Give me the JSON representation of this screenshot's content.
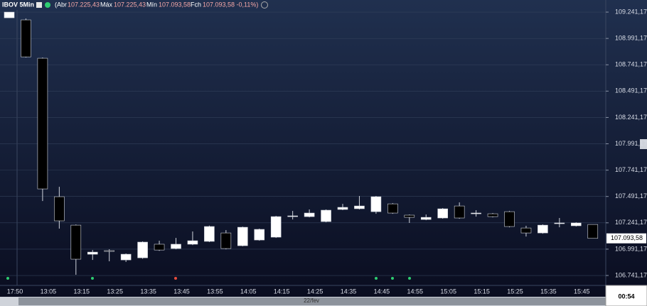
{
  "header": {
    "symbol": "IBOV 5Min",
    "fields": [
      {
        "name": "(Abr",
        "value": "107.225,43"
      },
      {
        "name": "Máx",
        "value": "107.225,43"
      },
      {
        "name": "Mín",
        "value": "107.093,58"
      },
      {
        "name": "Fch",
        "value": "107.093,58 -0,11%)"
      }
    ]
  },
  "chart_data": {
    "type": "candlestick",
    "categories": [
      "17:50",
      null,
      "13:05",
      null,
      "13:15",
      null,
      "13:25",
      null,
      "13:35",
      null,
      "13:45",
      null,
      "13:55",
      null,
      "14:05",
      null,
      "14:15",
      null,
      "14:25",
      null,
      "14:35",
      null,
      "14:45",
      null,
      "14:55",
      null,
      "15:05",
      null,
      "15:15",
      null,
      "15:25",
      null,
      "15:35",
      null,
      "15:45",
      null
    ],
    "open": [
      109187,
      109167,
      108803,
      107489,
      107219,
      106943,
      106977,
      106889,
      106909,
      107038,
      106997,
      107038,
      107065,
      107145,
      107024,
      107078,
      107105,
      107300,
      107300,
      107253,
      107368,
      107375,
      107347,
      107421,
      107314,
      107273,
      107287,
      107401,
      107327,
      107327,
      107347,
      107192,
      107145,
      107233,
      107213,
      107225.43
    ],
    "high": [
      109241,
      109180,
      108810,
      107583,
      107225,
      106983,
      106990,
      106950,
      107065,
      107071,
      107098,
      107159,
      107215,
      107172,
      107205,
      107186,
      107307,
      107354,
      107368,
      107368,
      107421,
      107496,
      107496,
      107428,
      107320,
      107320,
      107381,
      107435,
      107361,
      107334,
      107354,
      107213,
      107226,
      107287,
      107246,
      107225.43
    ],
    "low": [
      109187,
      108810,
      107448,
      107186,
      106748,
      106889,
      106876,
      106870,
      106900,
      106975,
      106990,
      107030,
      107058,
      106990,
      107018,
      107071,
      107098,
      107273,
      107293,
      107246,
      107361,
      107368,
      107327,
      107327,
      107240,
      107266,
      107280,
      107280,
      107300,
      107293,
      107199,
      107111,
      107138,
      107199,
      107206,
      107093.58
    ],
    "close": [
      109241,
      108816,
      107563,
      107260,
      106896,
      106963,
      106970,
      106943,
      107058,
      106983,
      107038,
      107071,
      107206,
      106997,
      107199,
      107179,
      107300,
      107307,
      107334,
      107361,
      107388,
      107401,
      107489,
      107334,
      107293,
      107293,
      107374,
      107287,
      107334,
      107300,
      107206,
      107145,
      107219,
      107240,
      107240,
      107093.58
    ],
    "up_color": "#ffffff",
    "down_color": "#000000",
    "ylim": [
      106647,
      109356
    ],
    "yticks": [
      {
        "value": 106741.17,
        "label": "106.741,17"
      },
      {
        "value": 106991.17,
        "label": "106.991,17"
      },
      {
        "value": 107241.17,
        "label": "107.241,17"
      },
      {
        "value": 107491.17,
        "label": "107.491,17"
      },
      {
        "value": 107741.17,
        "label": "107.741,17"
      },
      {
        "value": 107991.17,
        "label": "107.991,17"
      },
      {
        "value": 108241.17,
        "label": "108.241,17"
      },
      {
        "value": 108491.17,
        "label": "108.491,17"
      },
      {
        "value": 108741.17,
        "label": "108.741,17"
      },
      {
        "value": 108991.17,
        "label": "108.991,17"
      },
      {
        "value": 109241.17,
        "label": "109.241,17"
      }
    ],
    "grid": true,
    "last_price": {
      "value": 107093.58,
      "label": "107.093,58"
    },
    "date_label": "22/fev",
    "timer": "00:54"
  }
}
